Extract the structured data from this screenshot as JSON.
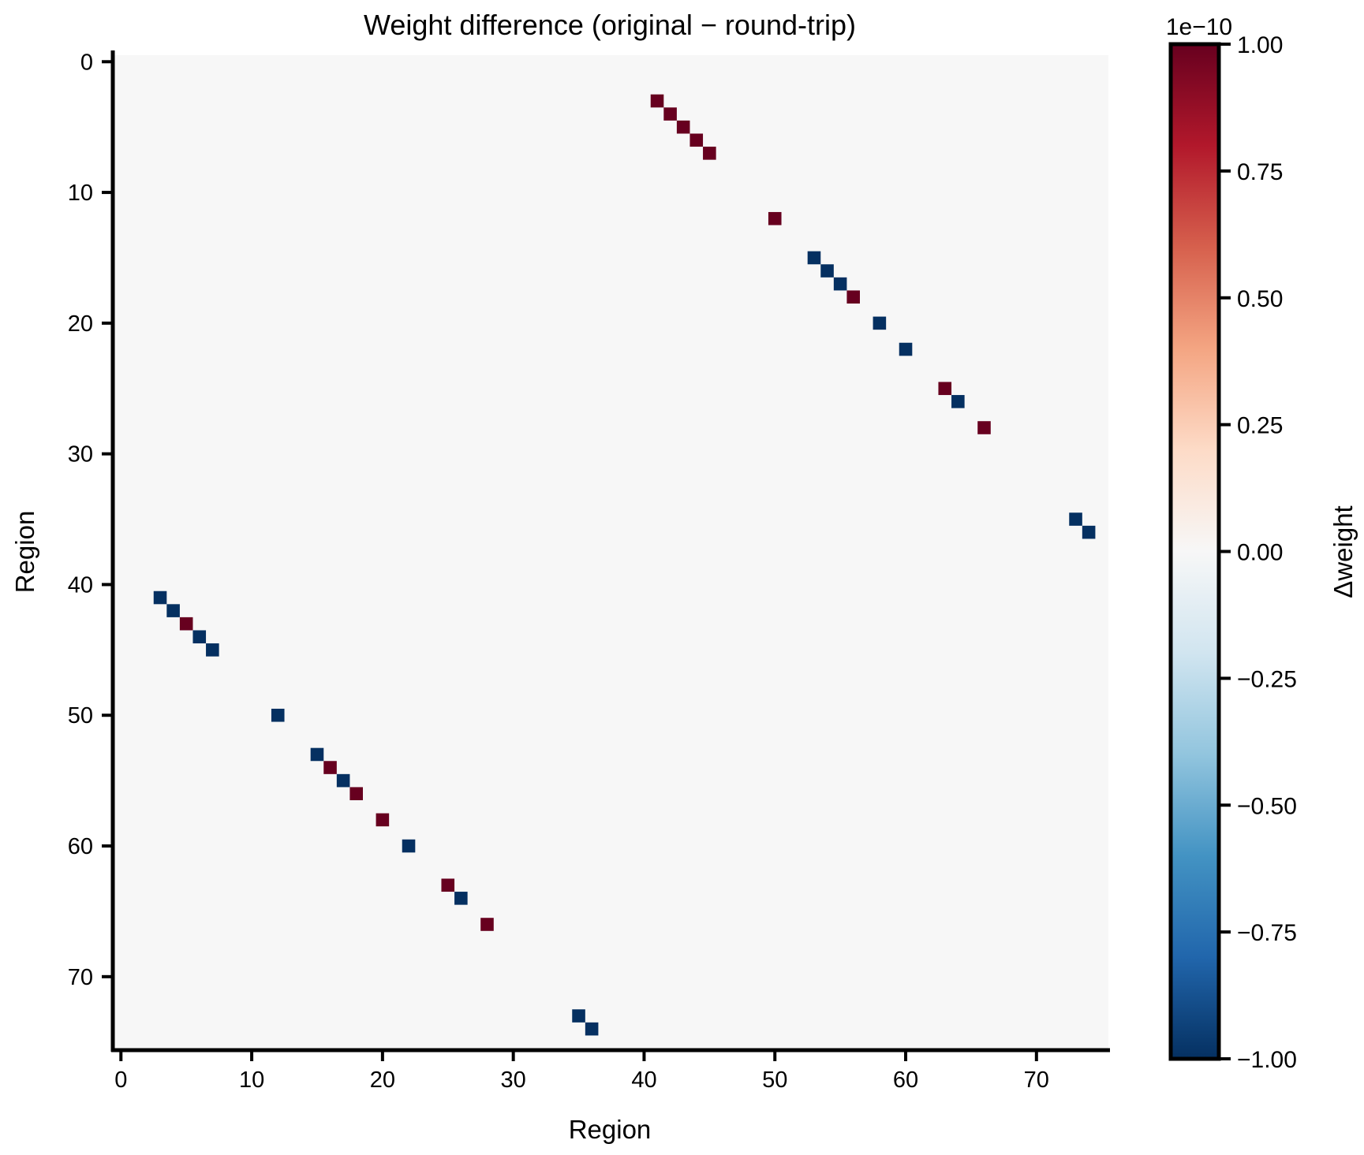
{
  "chart_data": {
    "type": "heatmap",
    "title": "Weight difference (original − round-trip)",
    "xlabel": "Region",
    "ylabel": "Region",
    "n_rows": 76,
    "n_cols": 76,
    "x_ticks": [
      0,
      10,
      20,
      30,
      40,
      50,
      60,
      70
    ],
    "y_ticks": [
      0,
      10,
      20,
      30,
      40,
      50,
      60,
      70
    ],
    "x_tick_labels": [
      "0",
      "10",
      "20",
      "30",
      "40",
      "50",
      "60",
      "70"
    ],
    "y_tick_labels": [
      "0",
      "10",
      "20",
      "30",
      "40",
      "50",
      "60",
      "70"
    ],
    "y_inverted": true,
    "background_value": 0,
    "cells": [
      {
        "row": 3,
        "col": 41,
        "value": 1e-10
      },
      {
        "row": 4,
        "col": 42,
        "value": 1e-10
      },
      {
        "row": 5,
        "col": 43,
        "value": 1e-10
      },
      {
        "row": 6,
        "col": 44,
        "value": 1e-10
      },
      {
        "row": 7,
        "col": 45,
        "value": 1e-10
      },
      {
        "row": 12,
        "col": 50,
        "value": 1e-10
      },
      {
        "row": 15,
        "col": 53,
        "value": -1e-10
      },
      {
        "row": 16,
        "col": 54,
        "value": -1e-10
      },
      {
        "row": 17,
        "col": 55,
        "value": -1e-10
      },
      {
        "row": 18,
        "col": 56,
        "value": 1e-10
      },
      {
        "row": 20,
        "col": 58,
        "value": -1e-10
      },
      {
        "row": 22,
        "col": 60,
        "value": -1e-10
      },
      {
        "row": 25,
        "col": 63,
        "value": 1e-10
      },
      {
        "row": 26,
        "col": 64,
        "value": -1e-10
      },
      {
        "row": 28,
        "col": 66,
        "value": 1e-10
      },
      {
        "row": 35,
        "col": 73,
        "value": -1e-10
      },
      {
        "row": 36,
        "col": 74,
        "value": -1e-10
      },
      {
        "row": 41,
        "col": 3,
        "value": -1e-10
      },
      {
        "row": 42,
        "col": 4,
        "value": -1e-10
      },
      {
        "row": 43,
        "col": 5,
        "value": 1e-10
      },
      {
        "row": 44,
        "col": 6,
        "value": -1e-10
      },
      {
        "row": 45,
        "col": 7,
        "value": -1e-10
      },
      {
        "row": 50,
        "col": 12,
        "value": -1e-10
      },
      {
        "row": 53,
        "col": 15,
        "value": -1e-10
      },
      {
        "row": 54,
        "col": 16,
        "value": 1e-10
      },
      {
        "row": 55,
        "col": 17,
        "value": -1e-10
      },
      {
        "row": 56,
        "col": 18,
        "value": 1e-10
      },
      {
        "row": 58,
        "col": 20,
        "value": 1e-10
      },
      {
        "row": 60,
        "col": 22,
        "value": -1e-10
      },
      {
        "row": 63,
        "col": 25,
        "value": 1e-10
      },
      {
        "row": 64,
        "col": 26,
        "value": -1e-10
      },
      {
        "row": 66,
        "col": 28,
        "value": 1e-10
      },
      {
        "row": 73,
        "col": 35,
        "value": -1e-10
      },
      {
        "row": 74,
        "col": 36,
        "value": -1e-10
      }
    ],
    "colorbar": {
      "label": "Δweight",
      "offset_text": "1e−10",
      "vmin": -1.0,
      "vmax": 1.0,
      "scale": 1e-10,
      "colormap": "RdBu_r",
      "ticks": [
        -1.0,
        -0.75,
        -0.5,
        -0.25,
        0.0,
        0.25,
        0.5,
        0.75,
        1.0
      ],
      "tick_labels": [
        "−1.00",
        "−0.75",
        "−0.50",
        "−0.25",
        "0.00",
        "0.25",
        "0.50",
        "0.75",
        "1.00"
      ],
      "stops": [
        "#053061",
        "#2166ac",
        "#4393c3",
        "#92c5de",
        "#d1e5f0",
        "#f7f7f7",
        "#fddbc7",
        "#f4a582",
        "#d6604d",
        "#b2182b",
        "#67001f"
      ]
    },
    "colors": {
      "positive": "#67001f",
      "negative": "#053061",
      "zero": "#f7f7f7"
    }
  }
}
